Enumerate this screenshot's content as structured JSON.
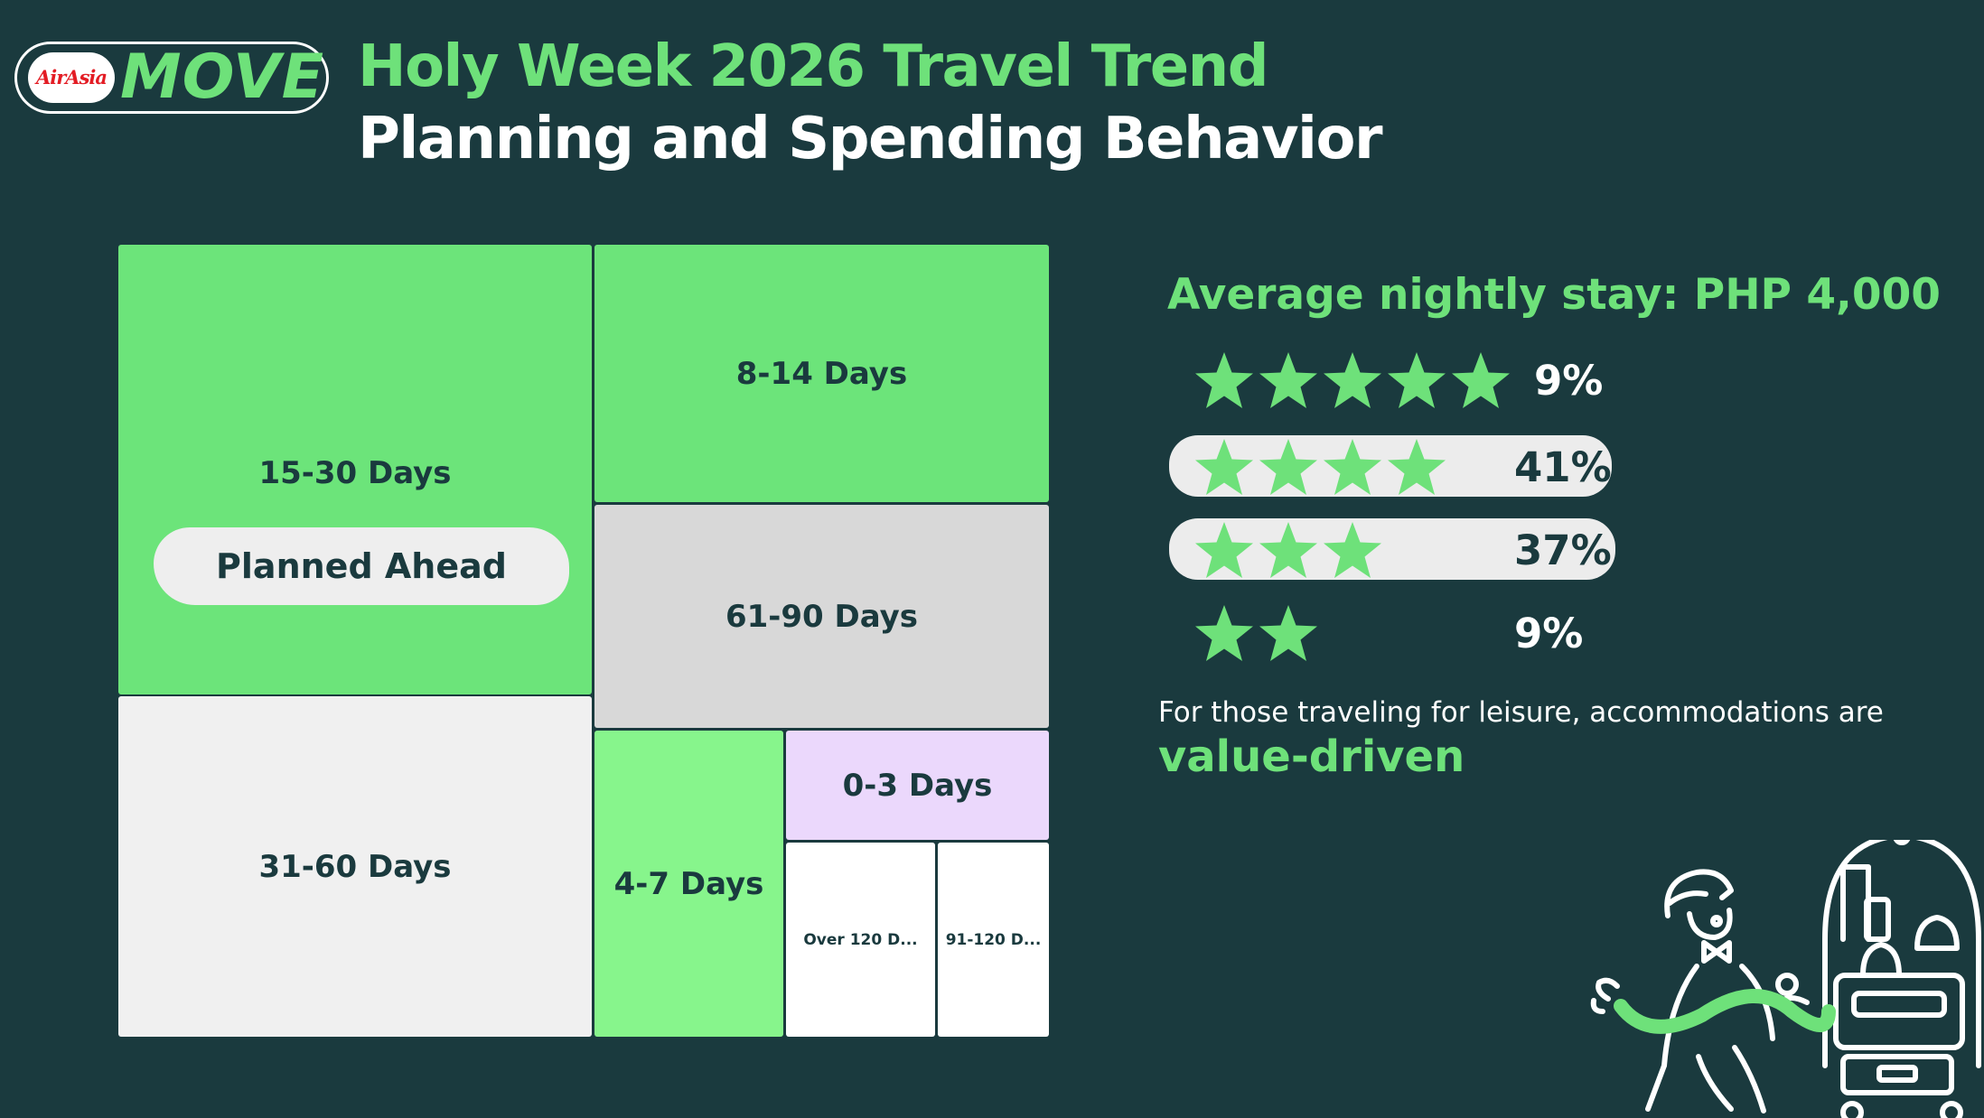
{
  "logo": {
    "brand": "AirAsia",
    "product": "MOVE"
  },
  "title": {
    "line1": "Holy Week 2026 Travel Trend",
    "line2": "Planning and Spending Behavior"
  },
  "colors": {
    "background": "#1a3a3e",
    "accent_green": "#6ee17a",
    "light_green": "#87f58c",
    "gray": "#d8d8d8",
    "light_gray": "#f0f0f0",
    "lavender": "#ebd8fc",
    "white": "#ffffff",
    "dark_text": "#1a3a3e"
  },
  "chart_data": [
    {
      "type": "treemap",
      "title": "",
      "categories": [
        "15-30 Days",
        "31-60 Days",
        "8-14 Days",
        "61-90 Days",
        "4-7 Days",
        "0-3 Days",
        "Over 120 D...",
        "91-120 D..."
      ],
      "tiles": [
        {
          "label": "15-30 Days",
          "color": "#6ce47a"
        },
        {
          "label": "31-60 Days",
          "color": "#f0f0f0"
        },
        {
          "label": "8-14 Days",
          "color": "#6ce47a"
        },
        {
          "label": "61-90 Days",
          "color": "#d8d8d8"
        },
        {
          "label": "4-7 Days",
          "color": "#87f58c"
        },
        {
          "label": "0-3 Days",
          "color": "#ebd8fc"
        },
        {
          "label": "Over 120 D...",
          "color": "#ffffff"
        },
        {
          "label": "91-120 D...",
          "color": "#ffffff"
        }
      ],
      "annotation": "Planned Ahead"
    },
    {
      "type": "bar",
      "title": "Average nightly stay: PHP 4,000",
      "categories": [
        "5 stars",
        "4 stars",
        "3 stars",
        "2 stars"
      ],
      "stars": [
        5,
        4,
        3,
        2
      ],
      "values": [
        9,
        41,
        37,
        9
      ],
      "labels": [
        "9%",
        "41%",
        "37%",
        "9%"
      ],
      "highlighted": [
        false,
        true,
        true,
        false
      ],
      "unit": "%"
    }
  ],
  "footnote": {
    "text": "For those traveling for leisure, accommodations are",
    "accent": "value-driven"
  },
  "illustration": {
    "icon": "bellhop-luggage-cart-illustration"
  }
}
